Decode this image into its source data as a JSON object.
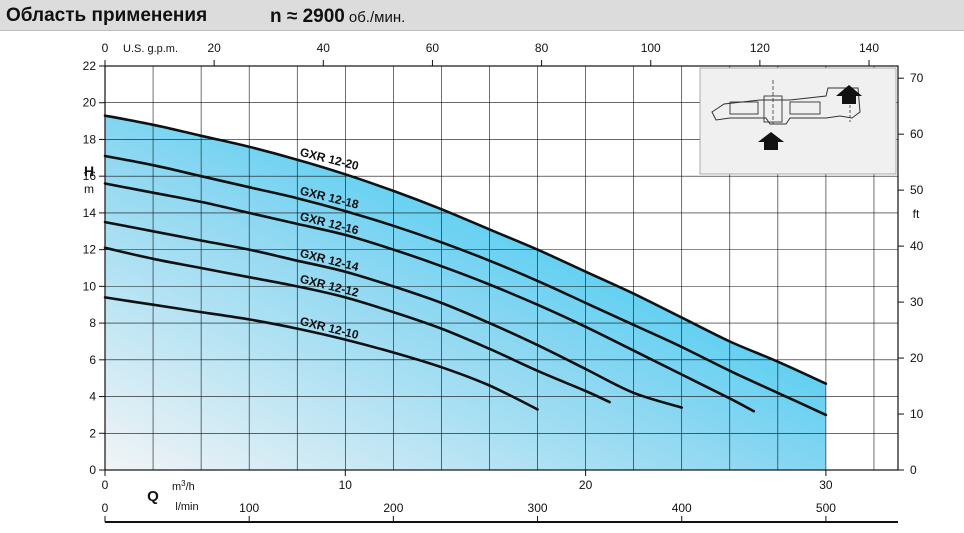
{
  "header": {
    "title": "Область применения",
    "speed_value": "n ≈ 2900",
    "speed_unit": "об./мин."
  },
  "chart_data": {
    "type": "line",
    "title": "Область применения",
    "x_axis": {
      "label": "Q",
      "unit": "m3/h",
      "range": [
        0,
        33
      ],
      "ticks": [
        0,
        10,
        20,
        30
      ]
    },
    "x_axis_lmin": {
      "unit": "l/min",
      "ticks": [
        0,
        100,
        200,
        300,
        400,
        500
      ]
    },
    "x_axis_usgpm": {
      "unit": "U.S. g.p.m.",
      "ticks": [
        0,
        20,
        40,
        60,
        80,
        100,
        120,
        140
      ]
    },
    "y_axis": {
      "label": "H",
      "unit": "m",
      "range": [
        0,
        22
      ],
      "ticks": [
        0,
        2,
        4,
        6,
        8,
        10,
        12,
        14,
        16,
        18,
        20,
        22
      ]
    },
    "y_axis_ft": {
      "unit": "ft",
      "ticks": [
        0,
        10,
        20,
        30,
        40,
        50,
        60,
        70
      ]
    },
    "grid": true,
    "fill_color": "#00bff0",
    "series": [
      {
        "name": "GXR 12-20",
        "x": [
          0,
          2,
          4,
          6,
          8,
          10,
          12,
          14,
          16,
          18,
          20,
          22,
          24,
          26,
          28,
          30
        ],
        "y": [
          19.3,
          18.8,
          18.2,
          17.6,
          16.9,
          16.1,
          15.2,
          14.2,
          13.1,
          12.0,
          10.8,
          9.6,
          8.3,
          7.0,
          5.9,
          4.7
        ]
      },
      {
        "name": "GXR 12-18",
        "x": [
          0,
          2,
          4,
          6,
          8,
          10,
          12,
          14,
          16,
          18,
          20,
          22,
          24,
          26,
          28,
          30
        ],
        "y": [
          17.1,
          16.6,
          16.0,
          15.4,
          14.8,
          14.1,
          13.3,
          12.4,
          11.4,
          10.3,
          9.1,
          7.9,
          6.7,
          5.4,
          4.2,
          3.0
        ]
      },
      {
        "name": "GXR 12-16",
        "x": [
          0,
          2,
          4,
          6,
          8,
          10,
          12,
          14,
          16,
          18,
          20,
          22,
          24,
          26,
          27
        ],
        "y": [
          15.6,
          15.1,
          14.6,
          14.0,
          13.4,
          12.8,
          12.0,
          11.1,
          10.1,
          9.0,
          7.8,
          6.5,
          5.2,
          3.9,
          3.2
        ]
      },
      {
        "name": "GXR 12-14",
        "x": [
          0,
          2,
          4,
          6,
          8,
          10,
          12,
          14,
          16,
          18,
          20,
          22,
          24
        ],
        "y": [
          13.5,
          13.0,
          12.5,
          12.0,
          11.4,
          10.8,
          10.0,
          9.1,
          8.0,
          6.8,
          5.5,
          4.2,
          3.4
        ]
      },
      {
        "name": "GXR 12-12",
        "x": [
          0,
          2,
          4,
          6,
          8,
          10,
          12,
          14,
          16,
          18,
          20,
          21
        ],
        "y": [
          12.1,
          11.5,
          11.0,
          10.5,
          10.0,
          9.4,
          8.6,
          7.7,
          6.6,
          5.4,
          4.3,
          3.7
        ]
      },
      {
        "name": "GXR 12-10",
        "x": [
          0,
          2,
          4,
          6,
          8,
          10,
          12,
          14,
          16,
          18
        ],
        "y": [
          9.4,
          9.0,
          8.6,
          8.2,
          7.7,
          7.1,
          6.4,
          5.6,
          4.6,
          3.3
        ]
      }
    ]
  }
}
